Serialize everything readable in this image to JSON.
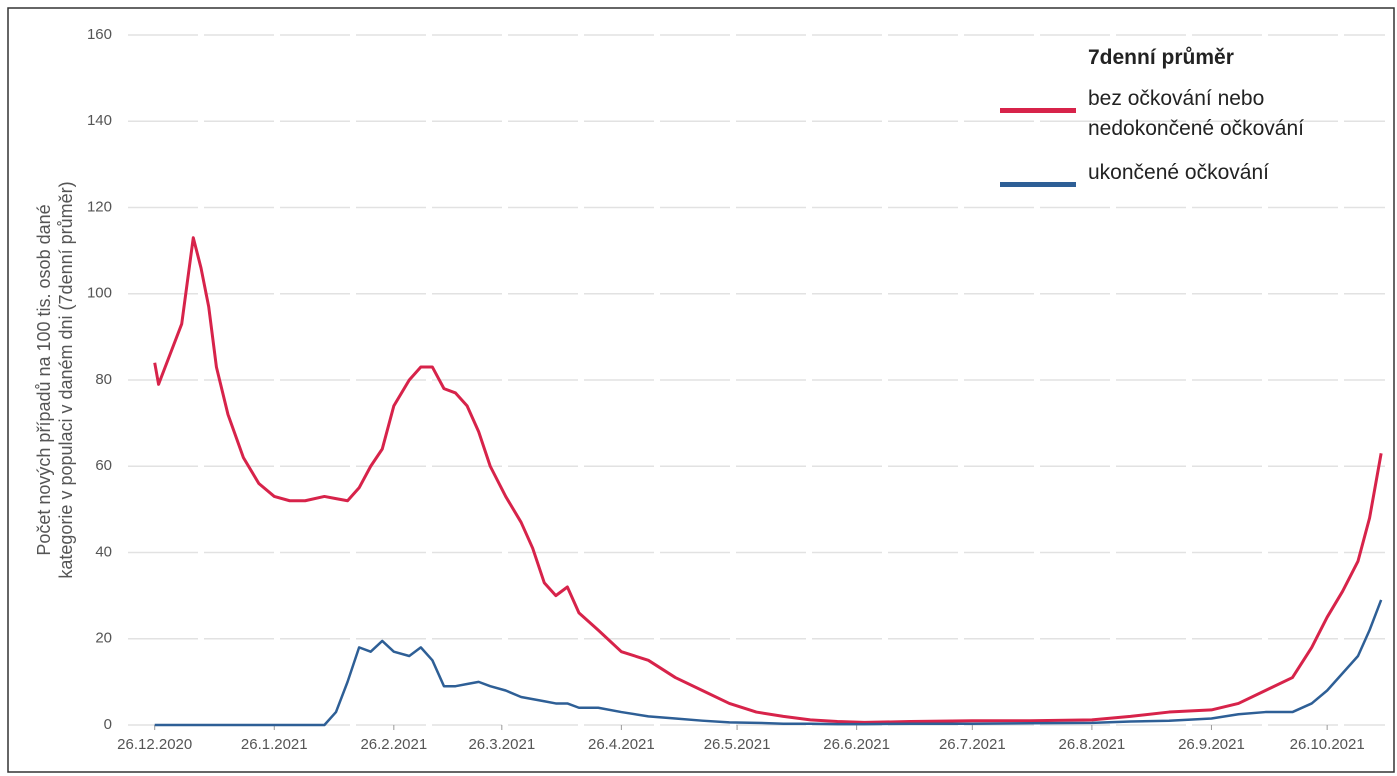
{
  "chart_data": {
    "type": "line",
    "ylabel": [
      "Počet nových případů na 100 tis. osob dané",
      "kategorie v populaci v daném dni (7denní průměr)"
    ],
    "legend_title": "7denní průměr",
    "x": [
      "2020-12-26",
      "2020-12-27",
      "2020-12-30",
      "2021-01-02",
      "2021-01-05",
      "2021-01-07",
      "2021-01-09",
      "2021-01-11",
      "2021-01-14",
      "2021-01-18",
      "2021-01-22",
      "2021-01-26",
      "2021-01-30",
      "2021-02-03",
      "2021-02-08",
      "2021-02-11",
      "2021-02-14",
      "2021-02-17",
      "2021-02-20",
      "2021-02-23",
      "2021-02-26",
      "2021-03-02",
      "2021-03-05",
      "2021-03-08",
      "2021-03-11",
      "2021-03-14",
      "2021-03-17",
      "2021-03-20",
      "2021-03-23",
      "2021-03-27",
      "2021-03-31",
      "2021-04-03",
      "2021-04-06",
      "2021-04-09",
      "2021-04-12",
      "2021-04-15",
      "2021-04-20",
      "2021-04-26",
      "2021-05-03",
      "2021-05-10",
      "2021-05-17",
      "2021-05-24",
      "2021-05-31",
      "2021-06-07",
      "2021-06-14",
      "2021-06-21",
      "2021-06-28",
      "2021-07-10",
      "2021-07-26",
      "2021-08-10",
      "2021-08-26",
      "2021-09-05",
      "2021-09-15",
      "2021-09-26",
      "2021-10-03",
      "2021-10-10",
      "2021-10-17",
      "2021-10-22",
      "2021-10-26",
      "2021-10-30",
      "2021-11-03",
      "2021-11-06",
      "2021-11-09"
    ],
    "series": [
      {
        "name": "bez očkování nebo nedokončené očkování",
        "color": "#d7234a",
        "values": [
          84,
          79,
          86,
          93,
          113,
          106,
          97,
          83,
          72,
          62,
          56,
          53,
          52,
          52,
          53,
          52.5,
          52,
          55,
          60,
          64,
          74,
          80,
          83,
          83,
          78,
          77,
          74,
          68,
          60,
          53,
          47,
          41,
          33,
          30,
          32,
          26,
          22,
          17,
          15,
          11,
          8,
          5,
          3,
          2,
          1.2,
          0.8,
          0.6,
          0.8,
          1,
          1,
          1.2,
          2,
          3,
          3.5,
          5,
          8,
          11,
          18,
          25,
          31,
          38,
          48,
          63
        ]
      },
      {
        "name": "ukončené očkování",
        "color": "#2e5f96",
        "values": [
          0,
          0,
          0,
          0,
          0,
          0,
          0,
          0,
          0,
          0,
          0,
          0,
          0,
          0,
          0,
          3,
          10,
          18,
          17,
          19.5,
          17,
          16,
          18,
          15,
          9,
          9,
          9.5,
          10,
          9,
          8,
          6.5,
          6,
          5.5,
          5,
          5,
          4,
          4,
          3,
          2,
          1.5,
          1,
          0.6,
          0.5,
          0.3,
          0.3,
          0.2,
          0.2,
          0.3,
          0.3,
          0.4,
          0.5,
          0.8,
          1,
          1.5,
          2.5,
          3,
          3,
          5,
          8,
          12,
          16,
          22,
          29
        ]
      }
    ],
    "xlim": [
      "2020-12-17",
      "2021-11-10"
    ],
    "xticks": [
      {
        "value": "2020-12-26",
        "label": "26.12.2020"
      },
      {
        "value": "2021-01-26",
        "label": "26.1.2021"
      },
      {
        "value": "2021-02-26",
        "label": "26.2.2021"
      },
      {
        "value": "2021-03-26",
        "label": "26.3.2021"
      },
      {
        "value": "2021-04-26",
        "label": "26.4.2021"
      },
      {
        "value": "2021-05-26",
        "label": "26.5.2021"
      },
      {
        "value": "2021-06-26",
        "label": "26.6.2021"
      },
      {
        "value": "2021-07-26",
        "label": "26.7.2021"
      },
      {
        "value": "2021-08-26",
        "label": "26.8.2021"
      },
      {
        "value": "2021-09-26",
        "label": "26.9.2021"
      },
      {
        "value": "2021-10-26",
        "label": "26.10.2021"
      }
    ],
    "ylim": [
      0,
      160
    ],
    "yticks": [
      0,
      20,
      40,
      60,
      80,
      100,
      120,
      140,
      160
    ],
    "grid": true
  }
}
